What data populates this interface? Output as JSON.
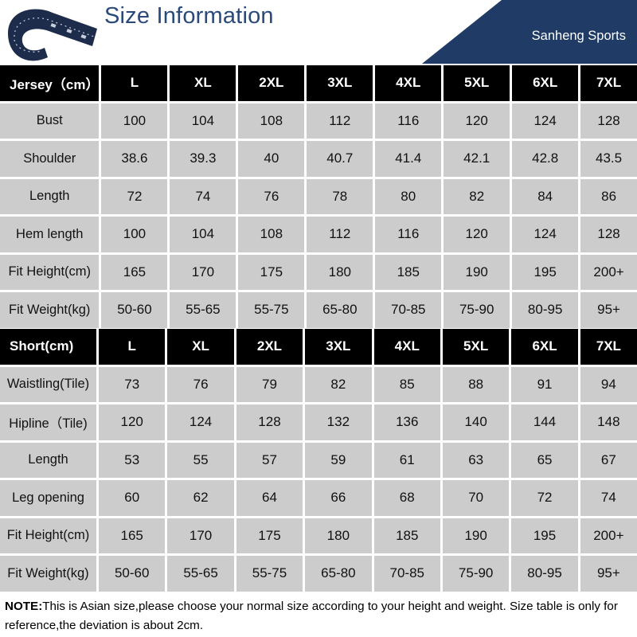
{
  "header": {
    "title": "Size Information",
    "brand": "Sanheng Sports"
  },
  "jersey": {
    "header_label": "Jersey（cm）",
    "sizes": [
      "L",
      "XL",
      "2XL",
      "3XL",
      "4XL",
      "5XL",
      "6XL",
      "7XL"
    ],
    "rows": [
      {
        "label": "Bust",
        "values": [
          "100",
          "104",
          "108",
          "112",
          "116",
          "120",
          "124",
          "128"
        ]
      },
      {
        "label": "Shoulder",
        "values": [
          "38.6",
          "39.3",
          "40",
          "40.7",
          "41.4",
          "42.1",
          "42.8",
          "43.5"
        ]
      },
      {
        "label": "Length",
        "values": [
          "72",
          "74",
          "76",
          "78",
          "80",
          "82",
          "84",
          "86"
        ]
      },
      {
        "label": "Hem length",
        "values": [
          "100",
          "104",
          "108",
          "112",
          "116",
          "120",
          "124",
          "128"
        ]
      },
      {
        "label": "Fit Height(cm)",
        "values": [
          "165",
          "170",
          "175",
          "180",
          "185",
          "190",
          "195",
          "200+"
        ]
      },
      {
        "label": "Fit Weight(kg)",
        "values": [
          "50-60",
          "55-65",
          "55-75",
          "65-80",
          "70-85",
          "75-90",
          "80-95",
          "95+"
        ]
      }
    ]
  },
  "short": {
    "header_label": "Short(cm)",
    "sizes": [
      "L",
      "XL",
      "2XL",
      "3XL",
      "4XL",
      "5XL",
      "6XL",
      "7XL"
    ],
    "rows": [
      {
        "label": "Waistling(Tile)",
        "values": [
          "73",
          "76",
          "79",
          "82",
          "85",
          "88",
          "91",
          "94"
        ]
      },
      {
        "label": "Hipline（Tile)",
        "values": [
          "120",
          "124",
          "128",
          "132",
          "136",
          "140",
          "144",
          "148"
        ]
      },
      {
        "label": "Length",
        "values": [
          "53",
          "55",
          "57",
          "59",
          "61",
          "63",
          "65",
          "67"
        ]
      },
      {
        "label": "Leg opening",
        "values": [
          "60",
          "62",
          "64",
          "66",
          "68",
          "70",
          "72",
          "74"
        ]
      },
      {
        "label": "Fit Height(cm)",
        "values": [
          "165",
          "170",
          "175",
          "180",
          "185",
          "190",
          "195",
          "200+"
        ]
      },
      {
        "label": "Fit Weight(kg)",
        "values": [
          "50-60",
          "55-65",
          "55-75",
          "65-80",
          "70-85",
          "75-90",
          "80-95",
          "95+"
        ]
      }
    ]
  },
  "note": {
    "prefix": "NOTE:",
    "text": "This is Asian size,please choose your normal size according to your height and weight. Size table is only for reference,the deviation is about 2cm."
  },
  "colors": {
    "title": "#2a4a7a",
    "brand_bg": "#1f3b66",
    "header_row": "#000000",
    "cell_bg": "#cccccc"
  },
  "icons": [
    "measuring-tape-icon"
  ]
}
